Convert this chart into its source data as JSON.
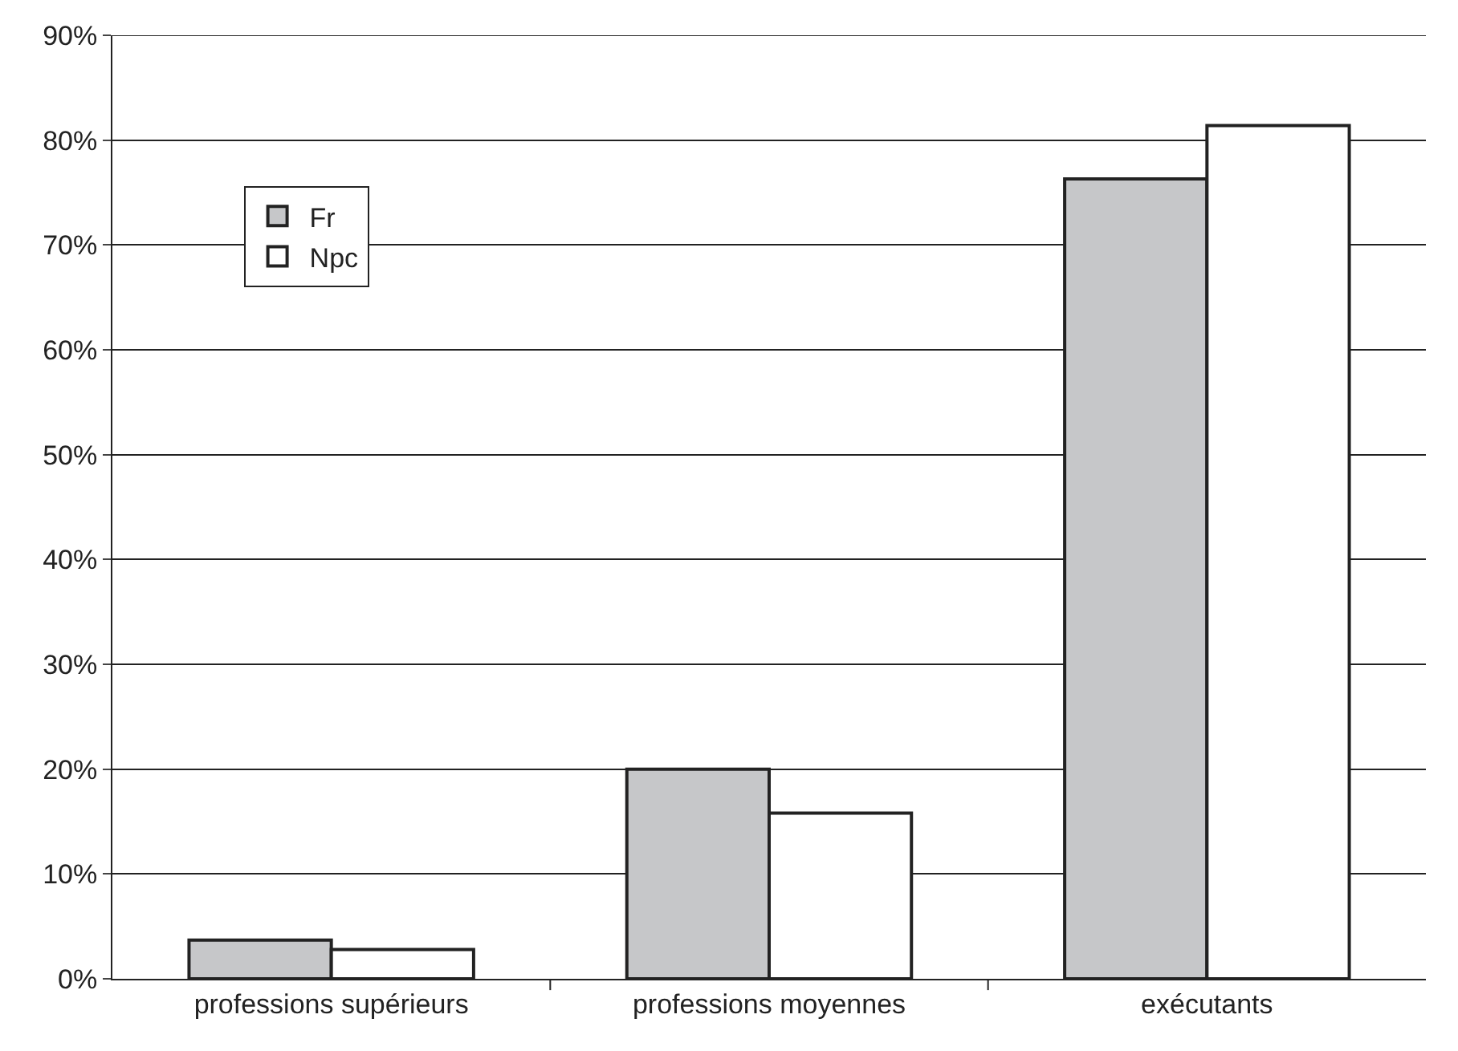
{
  "chart_data": {
    "type": "bar",
    "categories": [
      "professions supérieurs",
      "professions moyennes",
      "exécutants"
    ],
    "series": [
      {
        "name": "Fr",
        "color": "#c6c7c9",
        "values": [
          3.7,
          20.0,
          76.3
        ]
      },
      {
        "name": "Npc",
        "color": "#ffffff",
        "values": [
          2.8,
          15.8,
          81.4
        ]
      }
    ],
    "ylim": [
      0,
      90
    ],
    "yticks": [
      {
        "value": 0,
        "label": "0%"
      },
      {
        "value": 10,
        "label": "10%"
      },
      {
        "value": 20,
        "label": "20%"
      },
      {
        "value": 30,
        "label": "30%"
      },
      {
        "value": 40,
        "label": "40%"
      },
      {
        "value": 50,
        "label": "50%"
      },
      {
        "value": 60,
        "label": "60%"
      },
      {
        "value": 70,
        "label": "70%"
      },
      {
        "value": 80,
        "label": "80%"
      },
      {
        "value": 90,
        "label": "90%"
      }
    ],
    "grid": "y",
    "legend": "top left"
  }
}
